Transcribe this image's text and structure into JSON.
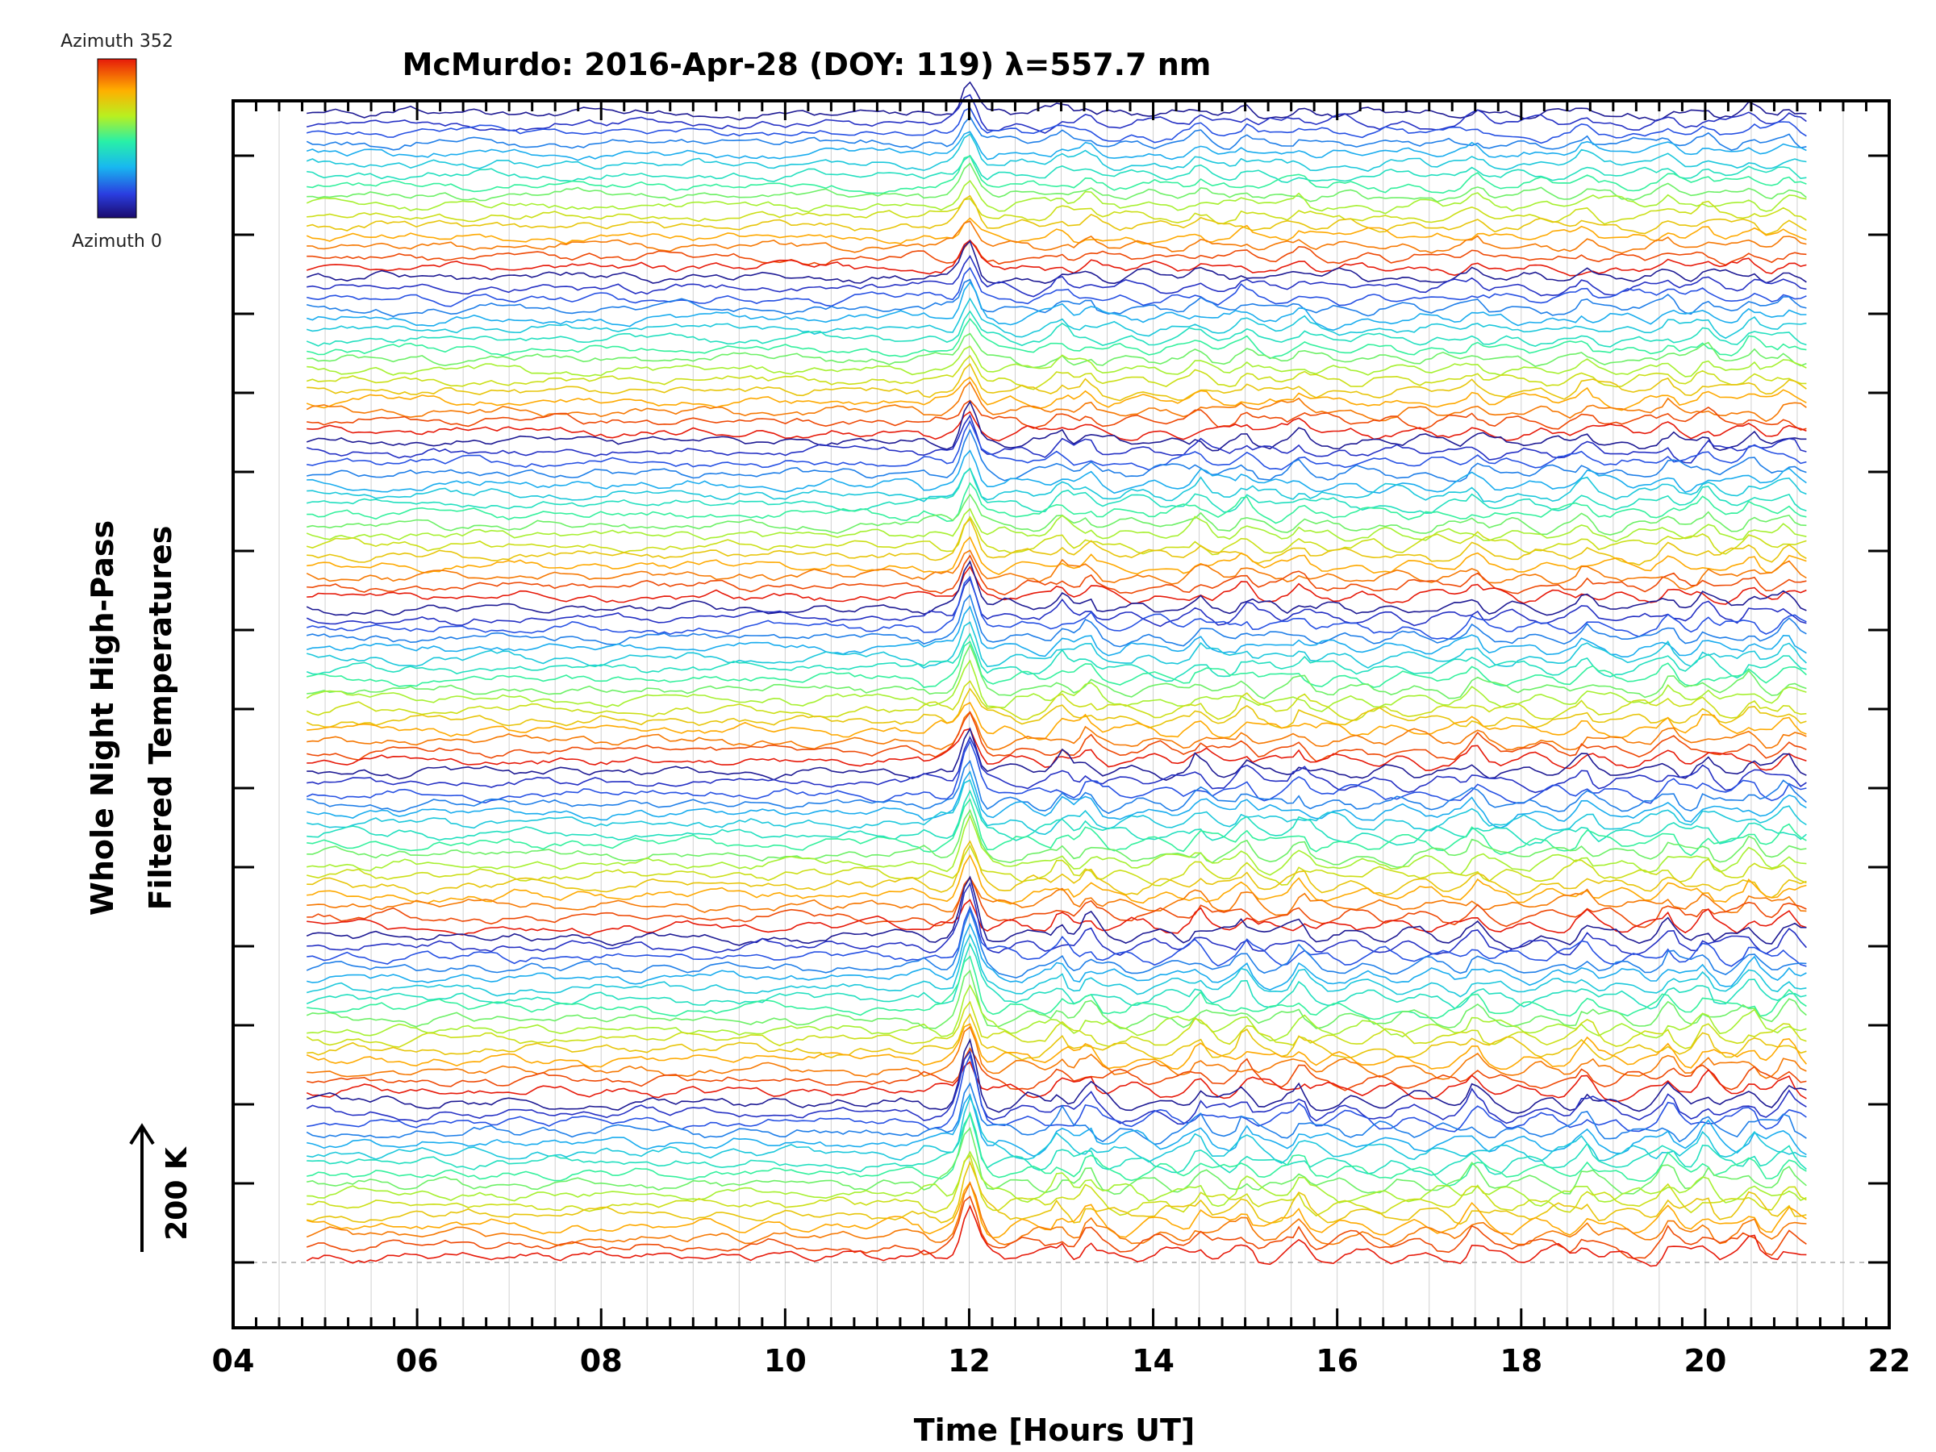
{
  "chart_data": {
    "type": "line",
    "title": "McMurdo: 2016-Apr-28 (DOY: 119) λ=557.7 nm",
    "xlabel": "Time [Hours UT]",
    "ylabel_line1": "Whole Night High-Pass",
    "ylabel_line2": "Filtered Temperatures",
    "xlim": [
      4,
      22
    ],
    "x_ticks": [
      "04",
      "06",
      "08",
      "10",
      "12",
      "14",
      "16",
      "18",
      "20",
      "22"
    ],
    "x_tick_values": [
      4,
      6,
      8,
      10,
      12,
      14,
      16,
      18,
      20,
      22
    ],
    "data_x_range": [
      4.8,
      21.1
    ],
    "grid": "vertical every 0.5 h",
    "colorbar": {
      "top_label": "Azimuth 352",
      "bottom_label": "Azimuth 0",
      "colormap": "rainbow (blue to red)"
    },
    "scale_bar_label": "200 K",
    "stacked_groups": 7,
    "lines_per_group": 16,
    "peak_times_hours": [
      12.0,
      13.0,
      13.3,
      14.5,
      15.0,
      15.6,
      17.5,
      18.7,
      19.6,
      20.0,
      20.5,
      20.9
    ],
    "note_values": "Stacked offset traces; y-axis has no numeric labels"
  },
  "colors": {
    "background": "#ffffff",
    "axis": "#000000",
    "grid": "#d0d0d0"
  }
}
